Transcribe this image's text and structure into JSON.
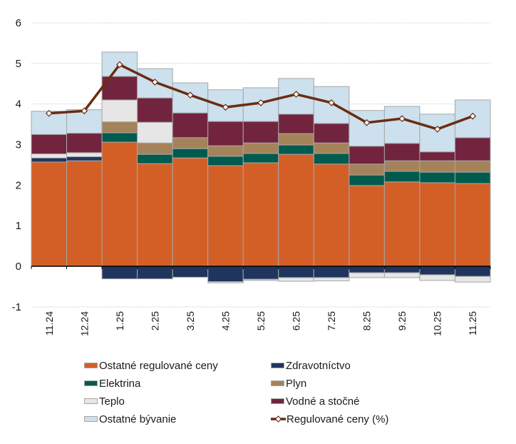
{
  "chart_data": {
    "type": "bar",
    "stacked": true,
    "title": "",
    "xlabel": "",
    "ylabel": "",
    "ylim": [
      -1,
      6
    ],
    "yticks": [
      -1,
      0,
      1,
      2,
      3,
      4,
      5,
      6
    ],
    "grid": true,
    "legend_position": "bottom",
    "categories": [
      "11.24",
      "12.24",
      "1.25",
      "2.25",
      "3.25",
      "4.25",
      "5.25",
      "6.25",
      "7.25",
      "8.25",
      "9.25",
      "10.25",
      "11.25"
    ],
    "series": [
      {
        "name": "Ostatné regulované ceny",
        "color": "#d35f27",
        "kind": "bar",
        "values": [
          2.57,
          2.6,
          3.06,
          2.53,
          2.67,
          2.48,
          2.55,
          2.76,
          2.52,
          1.99,
          2.08,
          2.06,
          2.04
        ]
      },
      {
        "name": "Zdravotníctvo",
        "color": "#1f355e",
        "kind": "bar",
        "values": [
          0.1,
          0.1,
          -0.31,
          -0.31,
          -0.27,
          -0.38,
          -0.32,
          -0.28,
          -0.28,
          -0.16,
          -0.16,
          -0.21,
          -0.25
        ]
      },
      {
        "name": "Elektrina",
        "color": "#005b4f",
        "kind": "bar",
        "values": [
          0,
          0,
          0.23,
          0.23,
          0.23,
          0.23,
          0.23,
          0.23,
          0.26,
          0.26,
          0.26,
          0.26,
          0.28
        ]
      },
      {
        "name": "Plyn",
        "color": "#a5835a",
        "kind": "bar",
        "values": [
          0,
          0,
          0.27,
          0.28,
          0.27,
          0.26,
          0.26,
          0.28,
          0.26,
          0.27,
          0.26,
          0.28,
          0.28
        ]
      },
      {
        "name": "Teplo",
        "color": "#e6e6e6",
        "kind": "bar",
        "values": [
          0.1,
          0.1,
          0.54,
          0.51,
          0,
          -0.03,
          -0.03,
          -0.09,
          -0.08,
          -0.12,
          -0.12,
          -0.14,
          -0.14
        ]
      },
      {
        "name": "Vodné a stočné",
        "color": "#72243e",
        "kind": "bar",
        "values": [
          0.48,
          0.48,
          0.58,
          0.6,
          0.61,
          0.6,
          0.53,
          0.48,
          0.48,
          0.44,
          0.43,
          0.22,
          0.57
        ]
      },
      {
        "name": "Ostatné bývanie",
        "color": "#cce0ed",
        "kind": "bar",
        "values": [
          0.57,
          0.58,
          0.6,
          0.72,
          0.74,
          0.78,
          0.83,
          0.88,
          0.91,
          0.88,
          0.91,
          0.93,
          0.93
        ]
      },
      {
        "name": "Regulované ceny (%)",
        "color": "#6b2c10",
        "kind": "line",
        "values": [
          3.77,
          3.83,
          4.97,
          4.54,
          4.22,
          3.92,
          4.03,
          4.24,
          4.03,
          3.54,
          3.64,
          3.38,
          3.7
        ]
      }
    ],
    "legend_order": [
      0,
      1,
      2,
      3,
      4,
      5,
      6,
      7
    ]
  }
}
